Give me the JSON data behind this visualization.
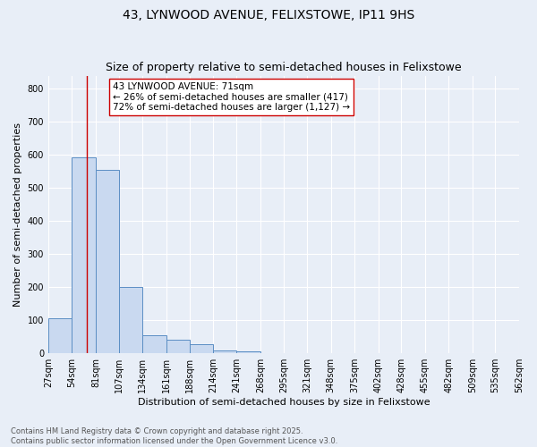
{
  "title": "43, LYNWOOD AVENUE, FELIXSTOWE, IP11 9HS",
  "subtitle": "Size of property relative to semi-detached houses in Felixstowe",
  "xlabel": "Distribution of semi-detached houses by size in Felixstowe",
  "ylabel": "Number of semi-detached properties",
  "bar_edges": [
    27,
    54,
    81,
    107,
    134,
    161,
    188,
    214,
    241,
    268,
    295,
    321,
    348,
    375,
    402,
    428,
    455,
    482,
    509,
    535,
    562
  ],
  "bar_heights": [
    107,
    593,
    556,
    201,
    55,
    42,
    27,
    8,
    7,
    0,
    0,
    0,
    0,
    0,
    0,
    0,
    0,
    0,
    0,
    0
  ],
  "bar_color": "#c9d9f0",
  "bar_edge_color": "#5b8ec4",
  "red_line_x": 71,
  "red_line_color": "#cc0000",
  "annotation_line1": "43 LYNWOOD AVENUE: 71sqm",
  "annotation_line2": "← 26% of semi-detached houses are smaller (417)",
  "annotation_line3": "72% of semi-detached houses are larger (1,127) →",
  "annotation_box_color": "#ffffff",
  "annotation_box_edge": "#cc0000",
  "ylim": [
    0,
    840
  ],
  "yticks": [
    0,
    100,
    200,
    300,
    400,
    500,
    600,
    700,
    800
  ],
  "background_color": "#e8eef7",
  "grid_color": "#ffffff",
  "footer_line1": "Contains HM Land Registry data © Crown copyright and database right 2025.",
  "footer_line2": "Contains public sector information licensed under the Open Government Licence v3.0.",
  "title_fontsize": 10,
  "subtitle_fontsize": 9,
  "tick_label_fontsize": 7,
  "axis_label_fontsize": 8,
  "annotation_fontsize": 7.5
}
